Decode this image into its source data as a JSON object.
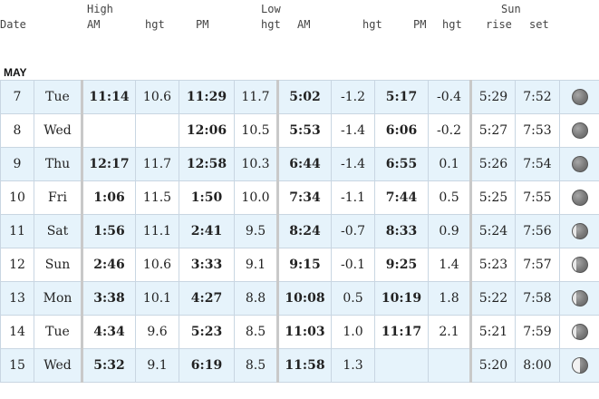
{
  "headers": {
    "date": "Date",
    "high": "High",
    "high_am": "AM",
    "high_am_hgt": "hgt",
    "high_pm": "PM",
    "high_pm_hgt": "hgt",
    "low": "Low",
    "low_am": "AM",
    "low_am_hgt": "hgt",
    "low_pm": "PM",
    "low_pm_hgt": "hgt",
    "sun": "Sun",
    "rise": "rise",
    "set": "set"
  },
  "month": "MAY",
  "rows": [
    {
      "day": "7",
      "dow": "Tue",
      "h_am": "11:14",
      "h_am_hgt": "10.6",
      "h_pm": "11:29",
      "h_pm_hgt": "11.7",
      "l_am": "5:02",
      "l_am_hgt": "-1.2",
      "l_pm": "5:17",
      "l_pm_hgt": "-0.4",
      "rise": "5:29",
      "set": "7:52",
      "moon": "full-moon-icon"
    },
    {
      "day": "8",
      "dow": "Wed",
      "h_am": "",
      "h_am_hgt": "",
      "h_pm": "12:06",
      "h_pm_hgt": "10.5",
      "l_am": "5:53",
      "l_am_hgt": "-1.4",
      "l_pm": "6:06",
      "l_pm_hgt": "-0.2",
      "rise": "5:27",
      "set": "7:53",
      "moon": "full-moon-icon"
    },
    {
      "day": "9",
      "dow": "Thu",
      "h_am": "12:17",
      "h_am_hgt": "11.7",
      "h_pm": "12:58",
      "h_pm_hgt": "10.3",
      "l_am": "6:44",
      "l_am_hgt": "-1.4",
      "l_pm": "6:55",
      "l_pm_hgt": "0.1",
      "rise": "5:26",
      "set": "7:54",
      "moon": "full-moon-icon"
    },
    {
      "day": "10",
      "dow": "Fri",
      "h_am": "1:06",
      "h_am_hgt": "11.5",
      "h_pm": "1:50",
      "h_pm_hgt": "10.0",
      "l_am": "7:34",
      "l_am_hgt": "-1.1",
      "l_pm": "7:44",
      "l_pm_hgt": "0.5",
      "rise": "5:25",
      "set": "7:55",
      "moon": "full-moon-icon"
    },
    {
      "day": "11",
      "dow": "Sat",
      "h_am": "1:56",
      "h_am_hgt": "11.1",
      "h_pm": "2:41",
      "h_pm_hgt": "9.5",
      "l_am": "8:24",
      "l_am_hgt": "-0.7",
      "l_pm": "8:33",
      "l_pm_hgt": "0.9",
      "rise": "5:24",
      "set": "7:56",
      "moon": "waning-gibbous-moon-icon"
    },
    {
      "day": "12",
      "dow": "Sun",
      "h_am": "2:46",
      "h_am_hgt": "10.6",
      "h_pm": "3:33",
      "h_pm_hgt": "9.1",
      "l_am": "9:15",
      "l_am_hgt": "-0.1",
      "l_pm": "9:25",
      "l_pm_hgt": "1.4",
      "rise": "5:23",
      "set": "7:57",
      "moon": "waning-gibbous-moon-icon"
    },
    {
      "day": "13",
      "dow": "Mon",
      "h_am": "3:38",
      "h_am_hgt": "10.1",
      "h_pm": "4:27",
      "h_pm_hgt": "8.8",
      "l_am": "10:08",
      "l_am_hgt": "0.5",
      "l_pm": "10:19",
      "l_pm_hgt": "1.8",
      "rise": "5:22",
      "set": "7:58",
      "moon": "waning-gibbous-moon-icon"
    },
    {
      "day": "14",
      "dow": "Tue",
      "h_am": "4:34",
      "h_am_hgt": "9.6",
      "h_pm": "5:23",
      "h_pm_hgt": "8.5",
      "l_am": "11:03",
      "l_am_hgt": "1.0",
      "l_pm": "11:17",
      "l_pm_hgt": "2.1",
      "rise": "5:21",
      "set": "7:59",
      "moon": "waning-gibbous-moon-icon"
    },
    {
      "day": "15",
      "dow": "Wed",
      "h_am": "5:32",
      "h_am_hgt": "9.1",
      "h_pm": "6:19",
      "h_pm_hgt": "8.5",
      "l_am": "11:58",
      "l_am_hgt": "1.3",
      "l_pm": "",
      "l_pm_hgt": "",
      "rise": "5:20",
      "set": "8:00",
      "moon": "last-quarter-moon-icon"
    }
  ]
}
